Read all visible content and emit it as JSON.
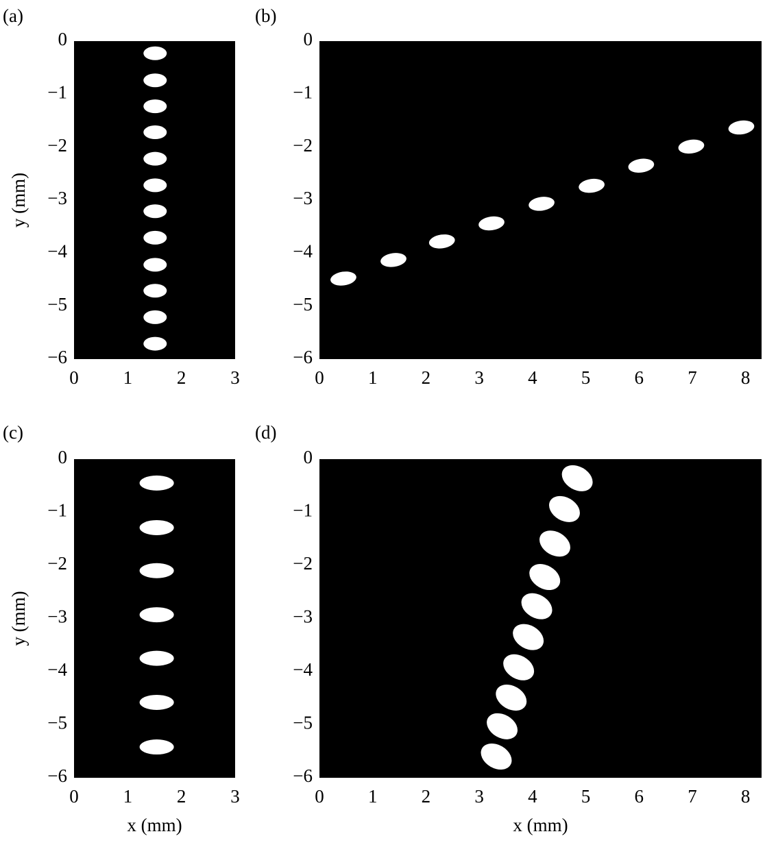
{
  "chart_data": [
    {
      "type": "scatter",
      "panel_label": "(a)",
      "ylabel": "y (mm)",
      "background": "#000000",
      "color": "#ffffff",
      "xlim": [
        0,
        3
      ],
      "ylim": [
        -6,
        0
      ],
      "xticks": [
        0,
        1,
        2,
        3
      ],
      "yticks": [
        0,
        {
          "value": -1,
          "label": "−1"
        },
        {
          "value": -2,
          "label": "−2"
        },
        {
          "value": -3,
          "label": "−3"
        },
        {
          "value": -4,
          "label": "−4"
        },
        {
          "value": -5,
          "label": "−5"
        },
        {
          "value": -6,
          "label": "−6"
        }
      ],
      "x": [
        1.51,
        1.51,
        1.51,
        1.51,
        1.51,
        1.51,
        1.51,
        1.51,
        1.51,
        1.51,
        1.51,
        1.51
      ],
      "values": [
        -0.23,
        -0.74,
        -1.23,
        -1.72,
        -2.22,
        -2.72,
        -3.21,
        -3.71,
        -4.22,
        -4.71,
        -5.21,
        -5.71
      ]
    },
    {
      "type": "scatter",
      "panel_label": "(b)",
      "background": "#000000",
      "color": "#ffffff",
      "xlim": [
        0,
        8.3
      ],
      "ylim": [
        -6,
        0
      ],
      "xticks": [
        0,
        1,
        2,
        3,
        4,
        5,
        6,
        7,
        8
      ],
      "yticks": [
        0,
        {
          "value": -1,
          "label": "−1"
        },
        {
          "value": -2,
          "label": "−2"
        },
        {
          "value": -3,
          "label": "−3"
        },
        {
          "value": -4,
          "label": "−4"
        },
        {
          "value": -5,
          "label": "−5"
        },
        {
          "value": -6,
          "label": "−6"
        }
      ],
      "x": [
        0.45,
        1.39,
        2.3,
        3.23,
        4.17,
        5.11,
        6.04,
        6.98,
        7.92
      ],
      "values": [
        -4.48,
        -4.13,
        -3.78,
        -3.44,
        -3.07,
        -2.73,
        -2.35,
        -1.99,
        -1.63
      ]
    },
    {
      "type": "scatter",
      "panel_label": "(c)",
      "xlabel": "x (mm)",
      "ylabel": "y (mm)",
      "background": "#000000",
      "color": "#ffffff",
      "xlim": [
        0,
        3
      ],
      "ylim": [
        -6,
        0
      ],
      "xticks": [
        0,
        1,
        2,
        3
      ],
      "yticks": [
        0,
        {
          "value": -1,
          "label": "−1"
        },
        {
          "value": -2,
          "label": "−2"
        },
        {
          "value": -3,
          "label": "−3"
        },
        {
          "value": -4,
          "label": "−4"
        },
        {
          "value": -5,
          "label": "−5"
        },
        {
          "value": -6,
          "label": "−6"
        }
      ],
      "x": [
        1.54,
        1.54,
        1.54,
        1.54,
        1.54,
        1.54,
        1.54
      ],
      "values": [
        -0.45,
        -1.29,
        -2.1,
        -2.93,
        -3.75,
        -4.58,
        -5.42
      ]
    },
    {
      "type": "scatter",
      "panel_label": "(d)",
      "xlabel": "x (mm)",
      "background": "#000000",
      "color": "#ffffff",
      "xlim": [
        0,
        8.3
      ],
      "ylim": [
        -6,
        0
      ],
      "xticks": [
        0,
        1,
        2,
        3,
        4,
        5,
        6,
        7,
        8
      ],
      "yticks": [
        0,
        {
          "value": -1,
          "label": "−1"
        },
        {
          "value": -2,
          "label": "−2"
        },
        {
          "value": -3,
          "label": "−3"
        },
        {
          "value": -4,
          "label": "−4"
        },
        {
          "value": -5,
          "label": "−5"
        },
        {
          "value": -6,
          "label": "−6"
        }
      ],
      "x": [
        4.84,
        4.6,
        4.42,
        4.23,
        4.08,
        3.92,
        3.74,
        3.6,
        3.43,
        3.32
      ],
      "values": [
        -0.36,
        -0.94,
        -1.59,
        -2.22,
        -2.77,
        -3.35,
        -3.92,
        -4.49,
        -5.03,
        -5.6
      ]
    }
  ]
}
